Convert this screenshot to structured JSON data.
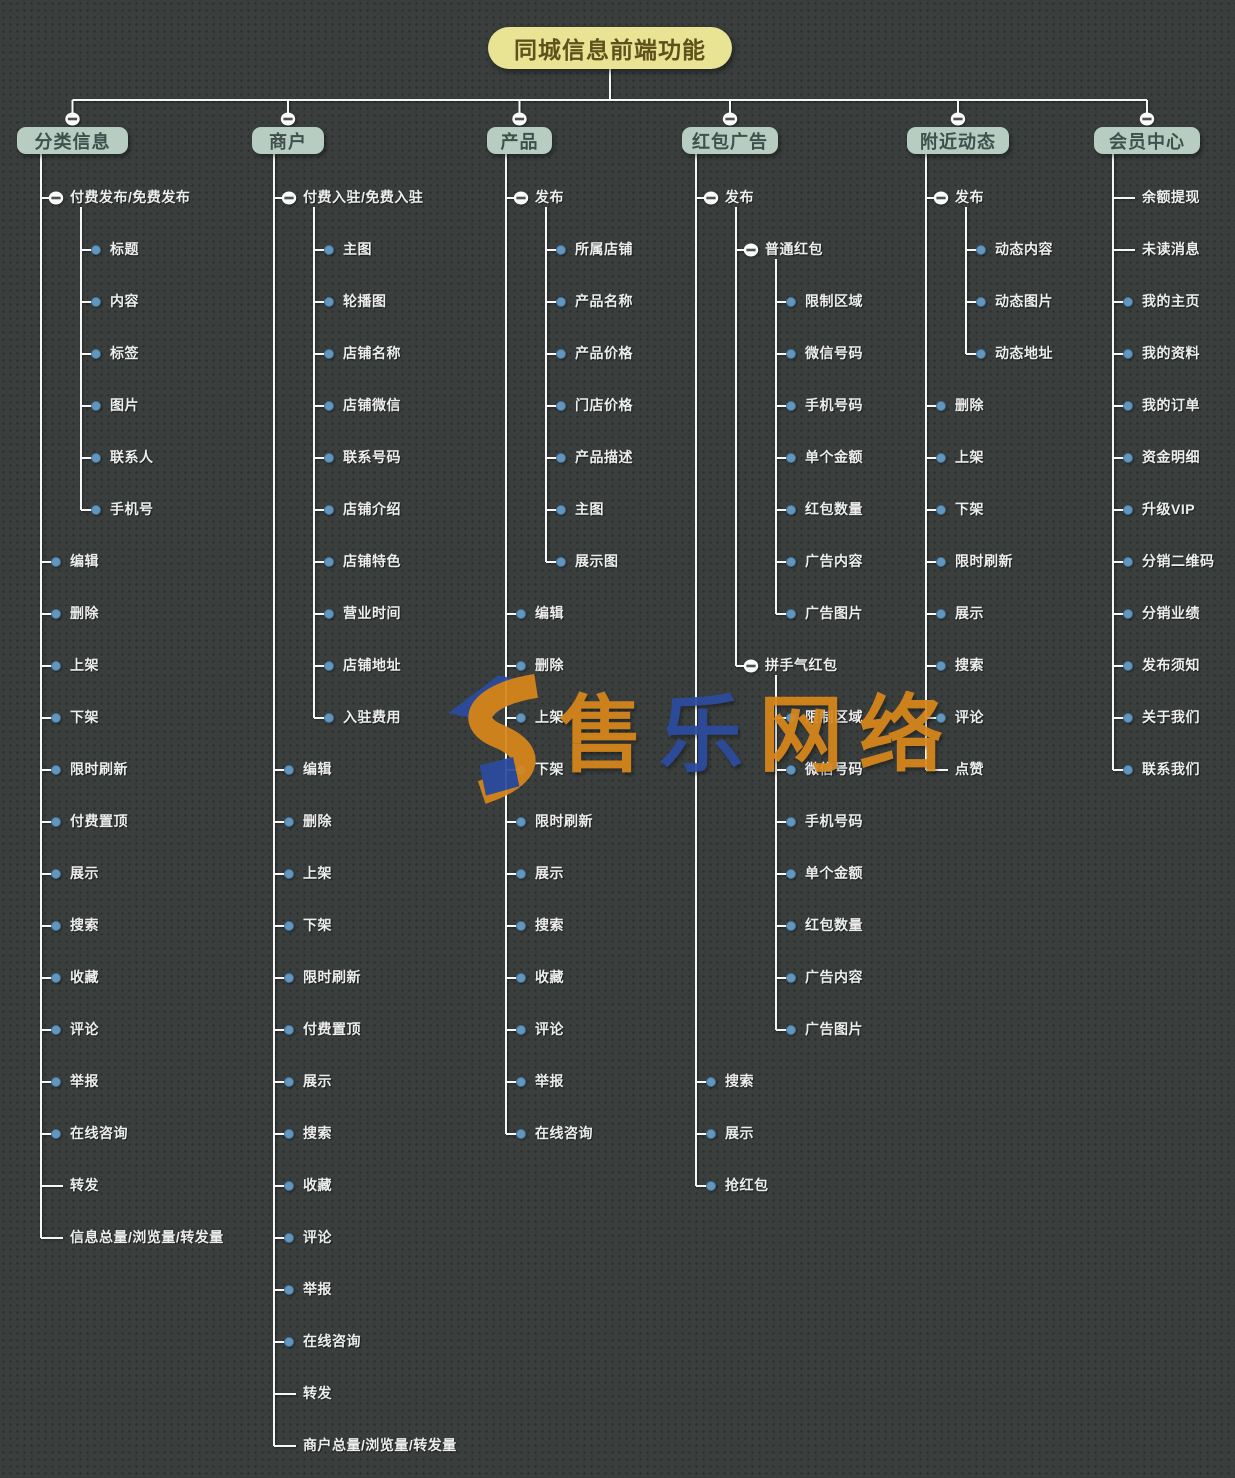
{
  "root": {
    "label": "同城信息前端功能"
  },
  "colors": {
    "background": "#3a3f3e",
    "root_fill": "#e9e394",
    "root_text": "#5e511c",
    "branch_fill": "#b7cdc2",
    "branch_text": "#40504c",
    "line": "#f7f7f7",
    "dot": "#6396bc",
    "dot_edge": "#44749c",
    "toggle_fill": "#fbfbfb",
    "toggle_bar": "#4a514f",
    "item_text": "#ededed",
    "watermark_orange": "#d8871b",
    "watermark_blue": "#2b4b9e"
  },
  "watermark": {
    "logo": "shoule-s-logo",
    "chars": [
      {
        "ch": "售",
        "color": "#d8871b"
      },
      {
        "ch": "乐",
        "color": "#2b4b9e"
      },
      {
        "ch": "网",
        "color": "#d8871b"
      },
      {
        "ch": "络",
        "color": "#d8871b"
      }
    ]
  },
  "columns": [
    {
      "label": "分类信息",
      "items": [
        {
          "label": "付费发布/免费发布",
          "marker": "toggle",
          "children": [
            {
              "label": "标题",
              "marker": "dot"
            },
            {
              "label": "内容",
              "marker": "dot"
            },
            {
              "label": "标签",
              "marker": "dot"
            },
            {
              "label": "图片",
              "marker": "dot"
            },
            {
              "label": "联系人",
              "marker": "dot"
            },
            {
              "label": "手机号",
              "marker": "dot"
            }
          ]
        },
        {
          "label": "编辑",
          "marker": "dot"
        },
        {
          "label": "删除",
          "marker": "dot"
        },
        {
          "label": "上架",
          "marker": "dot"
        },
        {
          "label": "下架",
          "marker": "dot"
        },
        {
          "label": "限时刷新",
          "marker": "dot"
        },
        {
          "label": "付费置顶",
          "marker": "dot"
        },
        {
          "label": "展示",
          "marker": "dot"
        },
        {
          "label": "搜索",
          "marker": "dot"
        },
        {
          "label": "收藏",
          "marker": "dot"
        },
        {
          "label": "评论",
          "marker": "dot"
        },
        {
          "label": "举报",
          "marker": "dot"
        },
        {
          "label": "在线咨询",
          "marker": "dot"
        },
        {
          "label": "转发",
          "marker": "none"
        },
        {
          "label": "信息总量/浏览量/转发量",
          "marker": "none"
        }
      ]
    },
    {
      "label": "商户",
      "items": [
        {
          "label": "付费入驻/免费入驻",
          "marker": "toggle",
          "children": [
            {
              "label": "主图",
              "marker": "dot"
            },
            {
              "label": "轮播图",
              "marker": "dot"
            },
            {
              "label": "店铺名称",
              "marker": "dot"
            },
            {
              "label": "店铺微信",
              "marker": "dot"
            },
            {
              "label": "联系号码",
              "marker": "dot"
            },
            {
              "label": "店铺介绍",
              "marker": "dot"
            },
            {
              "label": "店铺特色",
              "marker": "dot"
            },
            {
              "label": "营业时间",
              "marker": "dot"
            },
            {
              "label": "店铺地址",
              "marker": "dot"
            },
            {
              "label": "入驻费用",
              "marker": "dot"
            }
          ]
        },
        {
          "label": "编辑",
          "marker": "dot"
        },
        {
          "label": "删除",
          "marker": "dot"
        },
        {
          "label": "上架",
          "marker": "dot"
        },
        {
          "label": "下架",
          "marker": "dot"
        },
        {
          "label": "限时刷新",
          "marker": "dot"
        },
        {
          "label": "付费置顶",
          "marker": "dot"
        },
        {
          "label": "展示",
          "marker": "dot"
        },
        {
          "label": "搜索",
          "marker": "dot"
        },
        {
          "label": "收藏",
          "marker": "dot"
        },
        {
          "label": "评论",
          "marker": "dot"
        },
        {
          "label": "举报",
          "marker": "dot"
        },
        {
          "label": "在线咨询",
          "marker": "dot"
        },
        {
          "label": "转发",
          "marker": "none"
        },
        {
          "label": "商户总量/浏览量/转发量",
          "marker": "none"
        }
      ]
    },
    {
      "label": "产品",
      "items": [
        {
          "label": "发布",
          "marker": "toggle",
          "children": [
            {
              "label": "所属店铺",
              "marker": "dot"
            },
            {
              "label": "产品名称",
              "marker": "dot"
            },
            {
              "label": "产品价格",
              "marker": "dot"
            },
            {
              "label": "门店价格",
              "marker": "dot"
            },
            {
              "label": "产品描述",
              "marker": "dot"
            },
            {
              "label": "主图",
              "marker": "dot"
            },
            {
              "label": "展示图",
              "marker": "dot"
            }
          ]
        },
        {
          "label": "编辑",
          "marker": "dot"
        },
        {
          "label": "删除",
          "marker": "dot"
        },
        {
          "label": "上架",
          "marker": "dot"
        },
        {
          "label": "下架",
          "marker": "dot"
        },
        {
          "label": "限时刷新",
          "marker": "dot"
        },
        {
          "label": "展示",
          "marker": "dot"
        },
        {
          "label": "搜索",
          "marker": "dot"
        },
        {
          "label": "收藏",
          "marker": "dot"
        },
        {
          "label": "评论",
          "marker": "dot"
        },
        {
          "label": "举报",
          "marker": "dot"
        },
        {
          "label": "在线咨询",
          "marker": "dot"
        }
      ]
    },
    {
      "label": "红包广告",
      "items": [
        {
          "label": "发布",
          "marker": "toggle",
          "children": [
            {
              "label": "普通红包",
              "marker": "toggle",
              "children": [
                {
                  "label": "限制区域",
                  "marker": "dot"
                },
                {
                  "label": "微信号码",
                  "marker": "dot"
                },
                {
                  "label": "手机号码",
                  "marker": "dot"
                },
                {
                  "label": "单个金额",
                  "marker": "dot"
                },
                {
                  "label": "红包数量",
                  "marker": "dot"
                },
                {
                  "label": "广告内容",
                  "marker": "dot"
                },
                {
                  "label": "广告图片",
                  "marker": "dot"
                }
              ]
            },
            {
              "label": "拼手气红包",
              "marker": "toggle",
              "children": [
                {
                  "label": "限制区域",
                  "marker": "dot"
                },
                {
                  "label": "微信号码",
                  "marker": "dot"
                },
                {
                  "label": "手机号码",
                  "marker": "dot"
                },
                {
                  "label": "单个金额",
                  "marker": "dot"
                },
                {
                  "label": "红包数量",
                  "marker": "dot"
                },
                {
                  "label": "广告内容",
                  "marker": "dot"
                },
                {
                  "label": "广告图片",
                  "marker": "dot"
                }
              ]
            }
          ]
        },
        {
          "label": "搜索",
          "marker": "dot"
        },
        {
          "label": "展示",
          "marker": "dot"
        },
        {
          "label": "抢红包",
          "marker": "dot"
        }
      ]
    },
    {
      "label": "附近动态",
      "items": [
        {
          "label": "发布",
          "marker": "toggle",
          "children": [
            {
              "label": "动态内容",
              "marker": "dot"
            },
            {
              "label": "动态图片",
              "marker": "dot"
            },
            {
              "label": "动态地址",
              "marker": "dot"
            }
          ]
        },
        {
          "label": "删除",
          "marker": "dot"
        },
        {
          "label": "上架",
          "marker": "dot"
        },
        {
          "label": "下架",
          "marker": "dot"
        },
        {
          "label": "限时刷新",
          "marker": "dot"
        },
        {
          "label": "展示",
          "marker": "dot"
        },
        {
          "label": "搜索",
          "marker": "dot"
        },
        {
          "label": "评论",
          "marker": "dot"
        },
        {
          "label": "点赞",
          "marker": "none"
        }
      ]
    },
    {
      "label": "会员中心",
      "items": [
        {
          "label": "余额提现",
          "marker": "none"
        },
        {
          "label": "未读消息",
          "marker": "none"
        },
        {
          "label": "我的主页",
          "marker": "dot"
        },
        {
          "label": "我的资料",
          "marker": "dot"
        },
        {
          "label": "我的订单",
          "marker": "dot"
        },
        {
          "label": "资金明细",
          "marker": "dot"
        },
        {
          "label": "升级VIP",
          "marker": "dot"
        },
        {
          "label": "分销二维码",
          "marker": "dot"
        },
        {
          "label": "分销业绩",
          "marker": "dot"
        },
        {
          "label": "发布须知",
          "marker": "dot"
        },
        {
          "label": "关于我们",
          "marker": "dot"
        },
        {
          "label": "联系我们",
          "marker": "dot"
        }
      ]
    }
  ]
}
